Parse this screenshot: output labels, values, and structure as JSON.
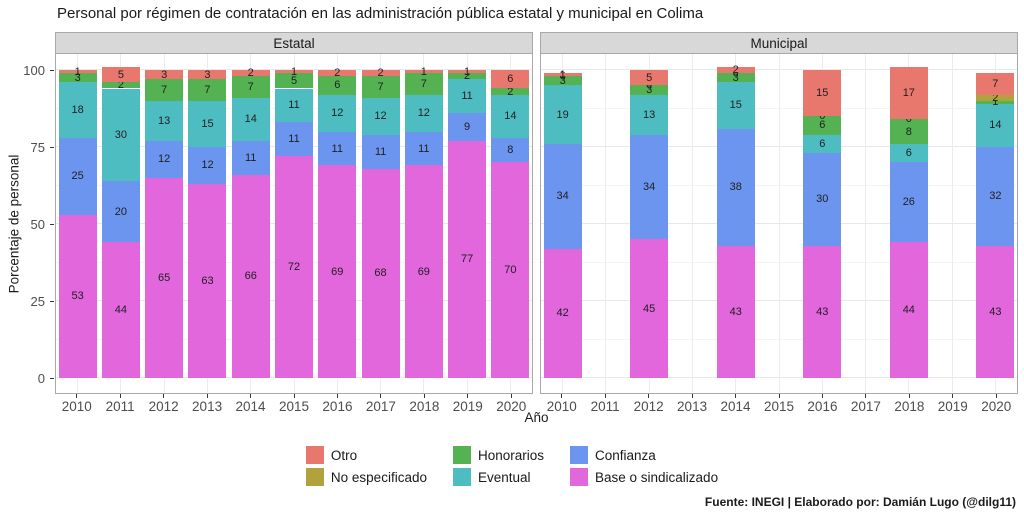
{
  "chart_data": {
    "type": "bar",
    "stacked": true,
    "title": "Personal por régimen de contratación en las administración pública estatal y municipal en Colima",
    "xlabel": "Año",
    "ylabel": "Porcentaje de personal",
    "caption": "Fuente: INEGI | Elaborado por: Damián Lugo (@dilg11)",
    "ylim": [
      0,
      100
    ],
    "y_ticks": [
      0,
      25,
      50,
      75,
      100
    ],
    "y_minor_ticks": [
      12.5,
      37.5,
      62.5,
      87.5
    ],
    "grid": true,
    "legend_position": "bottom",
    "categories_x": [
      "2010",
      "2011",
      "2012",
      "2013",
      "2014",
      "2015",
      "2016",
      "2017",
      "2018",
      "2019",
      "2020"
    ],
    "stack_order": [
      "Base o sindicalizado",
      "Confianza",
      "Eventual",
      "Honorarios",
      "No especificado",
      "Otro"
    ],
    "legend": {
      "items": [
        {
          "label": "Otro",
          "color": "#e8776d"
        },
        {
          "label": "No especificado",
          "color": "#b2a23e"
        },
        {
          "label": "Honorarios",
          "color": "#54b253"
        },
        {
          "label": "Eventual",
          "color": "#4ebdc2"
        },
        {
          "label": "Confianza",
          "color": "#6c95ef"
        },
        {
          "label": "Base o sindicalizado",
          "color": "#e266dc"
        }
      ]
    },
    "facets": [
      {
        "label": "Estatal",
        "series": {
          "2010": {
            "Otro": 1,
            "Honorarios": 3,
            "Eventual": 18,
            "Confianza": 25,
            "Base o sindicalizado": 53
          },
          "2011": {
            "Otro": 5,
            "Honorarios": 2,
            "Eventual": 30,
            "Confianza": 20,
            "Base o sindicalizado": 44
          },
          "2012": {
            "Otro": 3,
            "Honorarios": 7,
            "Eventual": 13,
            "Confianza": 12,
            "Base o sindicalizado": 65
          },
          "2013": {
            "Otro": 3,
            "Honorarios": 7,
            "Eventual": 15,
            "Confianza": 12,
            "Base o sindicalizado": 63
          },
          "2014": {
            "Otro": 2,
            "Honorarios": 7,
            "Eventual": 14,
            "Confianza": 11,
            "Base o sindicalizado": 66
          },
          "2015": {
            "Otro": 1,
            "Honorarios": 5,
            "Eventual": 11,
            "Confianza": 11,
            "Base o sindicalizado": 72
          },
          "2016": {
            "Otro": 2,
            "Honorarios": 6,
            "Eventual": 12,
            "Confianza": 11,
            "Base o sindicalizado": 69
          },
          "2017": {
            "Otro": 2,
            "Honorarios": 7,
            "Eventual": 12,
            "Confianza": 11,
            "Base o sindicalizado": 68
          },
          "2018": {
            "Otro": 1,
            "Honorarios": 7,
            "Eventual": 12,
            "Confianza": 11,
            "Base o sindicalizado": 69
          },
          "2019": {
            "Otro": 1,
            "Honorarios": 2,
            "Eventual": 11,
            "Confianza": 9,
            "Base o sindicalizado": 77
          },
          "2020": {
            "Otro": 6,
            "Honorarios": 2,
            "Eventual": 14,
            "Confianza": 8,
            "Base o sindicalizado": 70
          }
        }
      },
      {
        "label": "Municipal",
        "series": {
          "2010": {
            "Otro": 1,
            "No especificado": 0,
            "Honorarios": 3,
            "Eventual": 19,
            "Confianza": 34,
            "Base o sindicalizado": 42
          },
          "2012": {
            "Otro": 5,
            "No especificado": 0,
            "Honorarios": 3,
            "Eventual": 13,
            "Confianza": 34,
            "Base o sindicalizado": 45
          },
          "2014": {
            "Otro": 2,
            "No especificado": 0,
            "Honorarios": 3,
            "Eventual": 15,
            "Confianza": 38,
            "Base o sindicalizado": 43
          },
          "2016": {
            "Otro": 15,
            "No especificado": 0,
            "Honorarios": 6,
            "Eventual": 6,
            "Confianza": 30,
            "Base o sindicalizado": 43
          },
          "2018": {
            "Otro": 17,
            "No especificado": 0,
            "Honorarios": 8,
            "Eventual": 6,
            "Confianza": 26,
            "Base o sindicalizado": 44
          },
          "2020": {
            "Otro": 7,
            "No especificado": 2,
            "Honorarios": 1,
            "Eventual": 14,
            "Confianza": 32,
            "Base o sindicalizado": 43
          }
        }
      }
    ]
  }
}
